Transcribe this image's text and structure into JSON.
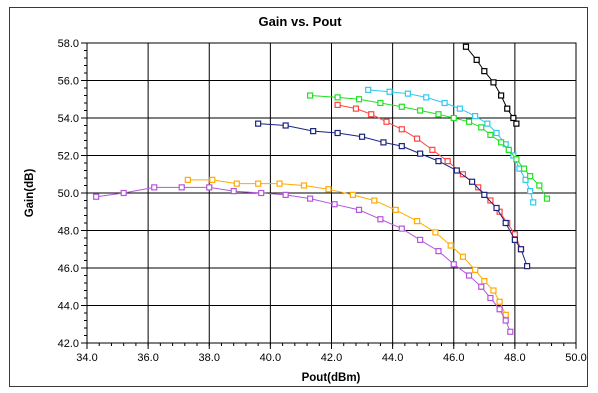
{
  "chart_data": {
    "type": "line",
    "title": "Gain vs. Pout",
    "xlabel": "Pout(dBm)",
    "ylabel": "Gain(dB)",
    "xlim": [
      34.0,
      50.0
    ],
    "ylim": [
      42.0,
      58.0
    ],
    "x_ticks": [
      "34.0",
      "36.0",
      "38.0",
      "40.0",
      "42.0",
      "44.0",
      "46.0",
      "48.0",
      "50.0"
    ],
    "y_ticks": [
      "42.0",
      "44.0",
      "46.0",
      "48.0",
      "50.0",
      "52.0",
      "54.0",
      "56.0",
      "58.0"
    ],
    "grid": true,
    "legend": "none",
    "marker": "hollow-square",
    "series": [
      {
        "color": "#000000",
        "x": [
          46.4,
          46.75,
          47.0,
          47.3,
          47.55,
          47.75,
          47.95,
          48.05
        ],
        "y": [
          57.8,
          57.1,
          56.5,
          55.9,
          55.2,
          54.5,
          54.0,
          53.7
        ]
      },
      {
        "color": "#33c8ee",
        "x": [
          43.2,
          43.9,
          44.5,
          45.1,
          45.7,
          46.2,
          46.7,
          47.1,
          47.4,
          47.7,
          47.95,
          48.15,
          48.35,
          48.5,
          48.6
        ],
        "y": [
          55.5,
          55.4,
          55.3,
          55.1,
          54.8,
          54.5,
          54.1,
          53.7,
          53.2,
          52.6,
          52.0,
          51.3,
          50.7,
          50.1,
          49.5
        ]
      },
      {
        "color": "#22e022",
        "x": [
          41.3,
          42.2,
          42.9,
          43.6,
          44.3,
          44.9,
          45.5,
          46.0,
          46.5,
          46.9,
          47.2,
          47.55,
          47.8,
          48.05,
          48.3,
          48.5,
          48.8,
          49.05
        ],
        "y": [
          55.2,
          55.1,
          55.0,
          54.8,
          54.6,
          54.4,
          54.2,
          54.0,
          53.8,
          53.5,
          53.1,
          52.7,
          52.3,
          51.8,
          51.3,
          50.9,
          50.4,
          49.7
        ]
      },
      {
        "color": "#ff4444",
        "x": [
          42.2,
          42.8,
          43.3,
          43.8,
          44.3,
          44.8,
          45.3,
          45.8,
          46.3,
          46.8,
          47.2,
          47.5,
          47.75,
          48.0,
          48.2
        ],
        "y": [
          54.7,
          54.5,
          54.2,
          53.8,
          53.4,
          52.9,
          52.3,
          51.7,
          51.0,
          50.3,
          49.6,
          49.0,
          48.4,
          47.8,
          47.0
        ]
      },
      {
        "color": "#1a237e",
        "x": [
          39.6,
          40.5,
          41.4,
          42.2,
          43.0,
          43.7,
          44.3,
          44.9,
          45.5,
          46.1,
          46.6,
          47.0,
          47.4,
          47.7,
          48.0,
          48.2,
          48.4
        ],
        "y": [
          53.7,
          53.6,
          53.3,
          53.2,
          53.0,
          52.7,
          52.5,
          52.1,
          51.7,
          51.2,
          50.6,
          49.9,
          49.2,
          48.4,
          47.5,
          47.0,
          46.1
        ]
      },
      {
        "color": "#ffaa00",
        "x": [
          37.3,
          38.1,
          38.9,
          39.6,
          40.3,
          41.1,
          41.9,
          42.7,
          43.4,
          44.1,
          44.8,
          45.4,
          45.9,
          46.3,
          46.7,
          47.0,
          47.3,
          47.5,
          47.7
        ],
        "y": [
          50.7,
          50.7,
          50.5,
          50.5,
          50.5,
          50.4,
          50.2,
          49.9,
          49.6,
          49.1,
          48.5,
          47.9,
          47.2,
          46.6,
          45.9,
          45.3,
          44.8,
          44.2,
          43.5
        ]
      },
      {
        "color": "#b455dd",
        "x": [
          34.3,
          35.2,
          36.2,
          37.1,
          38.0,
          38.8,
          39.7,
          40.5,
          41.3,
          42.1,
          42.9,
          43.6,
          44.3,
          44.9,
          45.5,
          46.0,
          46.5,
          46.9,
          47.2,
          47.5,
          47.7,
          47.85
        ],
        "y": [
          49.8,
          50.0,
          50.3,
          50.3,
          50.3,
          50.1,
          50.0,
          49.9,
          49.7,
          49.4,
          49.1,
          48.6,
          48.1,
          47.5,
          46.9,
          46.2,
          45.6,
          45.0,
          44.4,
          43.8,
          43.2,
          42.6
        ]
      }
    ]
  }
}
